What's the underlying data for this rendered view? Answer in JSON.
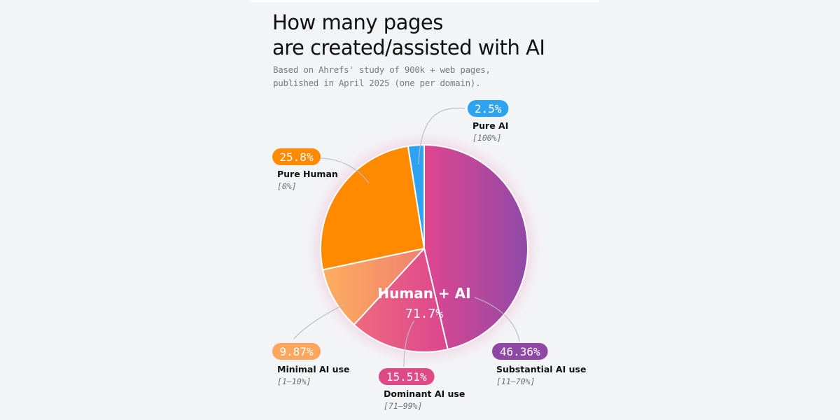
{
  "header": {
    "title_line1": "How many pages",
    "title_line2": "are created/assisted with AI",
    "subtitle_line1": "Based on Ahrefs' study of 900k + web pages,",
    "subtitle_line2": "published in April 2025 (one per domain)."
  },
  "center_label": {
    "title": "Human + AI",
    "value": "71.7%"
  },
  "chart_data": {
    "type": "pie",
    "title": "How many pages are created/assisted with AI",
    "subtitle": "Based on Ahrefs' study of 900k + web pages, published in April 2025 (one per domain).",
    "slices": [
      {
        "name": "Substantial AI use",
        "range": "[11–70%]",
        "value": 46.36,
        "label": "46.36%",
        "color": "#a0479f",
        "gradient": [
          "#e0468f",
          "#9049a8"
        ]
      },
      {
        "name": "Dominant AI use",
        "range": "[71–99%]",
        "value": 15.51,
        "label": "15.51%",
        "color": "#dd4a86",
        "gradient": [
          "#ee6b7c",
          "#dc4590"
        ]
      },
      {
        "name": "Minimal AI use",
        "range": "[1–10%]",
        "value": 9.87,
        "label": "9.87%",
        "color": "#fca65e",
        "gradient": [
          "#fdae5f",
          "#f08070"
        ]
      },
      {
        "name": "Pure Human",
        "range": "[0%]",
        "value": 25.8,
        "label": "25.8%",
        "color": "#ff8a00",
        "gradient": [
          "#ff8a00",
          "#ff8a00"
        ]
      },
      {
        "name": "Pure AI",
        "range": "[100%]",
        "value": 2.5,
        "label": "2.5%",
        "color": "#2ea3f2",
        "gradient": [
          "#2ea3f2",
          "#2ea3f2"
        ]
      }
    ],
    "group": {
      "name": "Human + AI",
      "value": 71.7,
      "label": "71.7%"
    },
    "legend": "callouts"
  }
}
